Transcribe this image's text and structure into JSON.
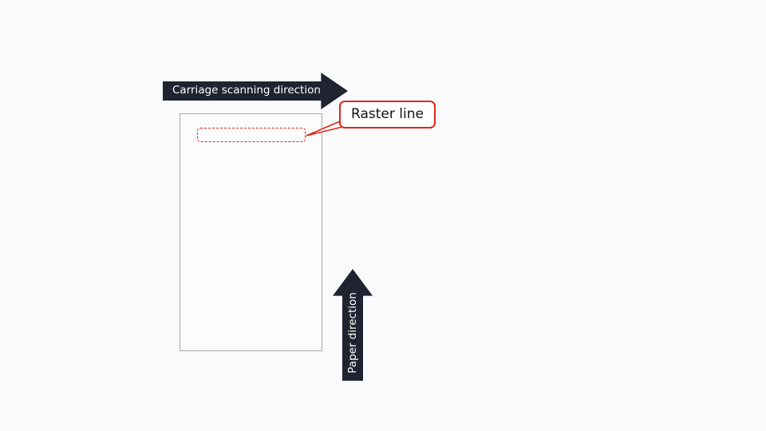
{
  "arrows": {
    "carriage_label": "Carriage scanning direction",
    "paper_label": "Paper direction",
    "arrow_color": "#1f2430"
  },
  "callout": {
    "label": "Raster line",
    "accent_color": "#e0251b"
  }
}
